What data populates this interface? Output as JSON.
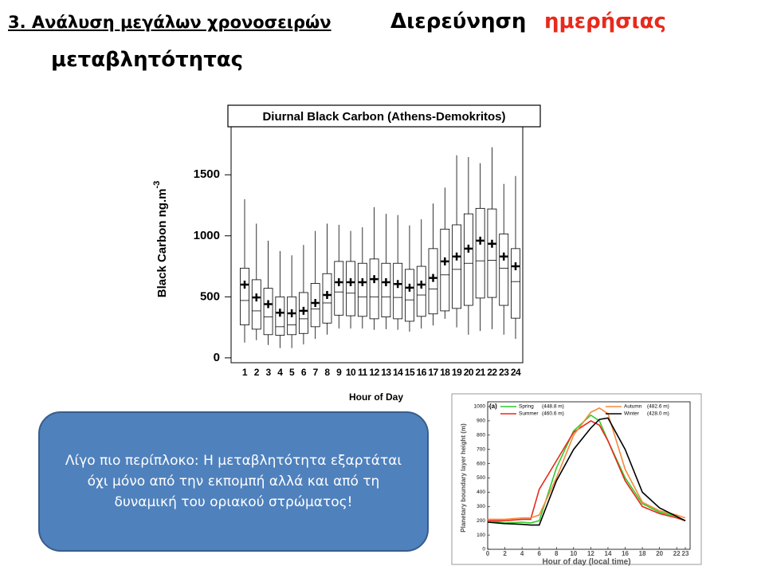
{
  "title": {
    "part1": "3. Ανάλυση μεγάλων χρονοσειρών",
    "part2": "Διερεύνηση",
    "part3": "ημερήσιας",
    "part4": "μεταβλητότητας"
  },
  "callout": "Λίγο πιο περίπλοκο: Η μεταβλητότητα εξαρτάται όχι μόνο από την εκπομπή αλλά και από τη δυναμική του οριακού στρώματος!",
  "chart_data": [
    {
      "type": "box",
      "title": "Diurnal Black Carbon (Athens-Demokritos)",
      "y_label": "Black Carbon ng.m",
      "y_label_sup": "-3",
      "x_label": "Hour of Day",
      "categories": [
        "1",
        "2",
        "3",
        "4",
        "5",
        "6",
        "7",
        "8",
        "9",
        "10",
        "11",
        "12",
        "13",
        "14",
        "15",
        "16",
        "17",
        "18",
        "19",
        "20",
        "21",
        "22",
        "23",
        "24"
      ],
      "whisker_low": [
        125,
        145,
        105,
        80,
        80,
        110,
        155,
        190,
        240,
        240,
        240,
        230,
        235,
        230,
        215,
        240,
        265,
        320,
        250,
        190,
        220,
        235,
        190,
        155
      ],
      "q1": [
        270,
        235,
        190,
        185,
        190,
        200,
        255,
        285,
        350,
        345,
        340,
        320,
        335,
        320,
        300,
        340,
        360,
        385,
        405,
        430,
        490,
        495,
        430,
        325
      ],
      "median": [
        470,
        385,
        335,
        255,
        270,
        320,
        400,
        450,
        540,
        530,
        500,
        500,
        500,
        495,
        475,
        515,
        565,
        680,
        725,
        775,
        795,
        800,
        735,
        625
      ],
      "q3": [
        735,
        640,
        570,
        500,
        500,
        535,
        610,
        690,
        790,
        790,
        775,
        810,
        775,
        775,
        725,
        750,
        895,
        1055,
        1090,
        1180,
        1225,
        1220,
        1015,
        895
      ],
      "whisker_high": [
        1300,
        1100,
        960,
        875,
        840,
        925,
        1040,
        1100,
        1090,
        1040,
        1070,
        1235,
        1180,
        1170,
        1085,
        1135,
        1265,
        1395,
        1660,
        1645,
        1595,
        1725,
        1425,
        1490
      ],
      "mean": [
        600,
        495,
        440,
        370,
        365,
        385,
        450,
        515,
        620,
        620,
        620,
        645,
        620,
        605,
        575,
        600,
        655,
        790,
        830,
        895,
        960,
        935,
        830,
        750
      ],
      "color": "#000000",
      "ylim": [
        -40,
        1900
      ],
      "yticks": [
        0,
        500,
        1000,
        1500
      ]
    },
    {
      "type": "line",
      "panel": "(a)",
      "y_label": "Planetary boundary layer height (m)",
      "x_label": "Hour of day (local time)",
      "x": [
        0,
        2,
        4,
        5,
        6,
        8,
        10,
        12,
        13,
        14,
        16,
        18,
        20,
        22,
        23
      ],
      "series": [
        {
          "name": "Spring",
          "note": "(448.8 m)",
          "color": "#2fcc2f",
          "values": [
            200,
            185,
            190,
            185,
            200,
            570,
            830,
            940,
            900,
            760,
            500,
            320,
            260,
            230,
            200
          ]
        },
        {
          "name": "Summer",
          "note": "(460.6 m)",
          "color": "#e8291c",
          "values": [
            200,
            200,
            210,
            210,
            420,
            620,
            820,
            900,
            870,
            760,
            480,
            300,
            250,
            220,
            200
          ]
        },
        {
          "name": "Autumn",
          "note": "(482.6 m)",
          "color": "#f5893a",
          "values": [
            210,
            210,
            220,
            220,
            240,
            500,
            800,
            960,
            990,
            950,
            560,
            330,
            270,
            240,
            220
          ]
        },
        {
          "name": "Winter",
          "note": "(428.0 m)",
          "color": "#000000",
          "values": [
            190,
            180,
            175,
            170,
            170,
            480,
            700,
            850,
            910,
            920,
            700,
            400,
            290,
            230,
            200
          ]
        }
      ],
      "xlim": [
        0,
        23
      ],
      "xticks": [
        0,
        2,
        4,
        6,
        8,
        10,
        12,
        14,
        16,
        18,
        20,
        22,
        23
      ],
      "ylim": [
        0,
        1000
      ],
      "yticks": [
        0,
        100,
        200,
        300,
        400,
        500,
        600,
        700,
        800,
        900,
        1000
      ]
    }
  ]
}
